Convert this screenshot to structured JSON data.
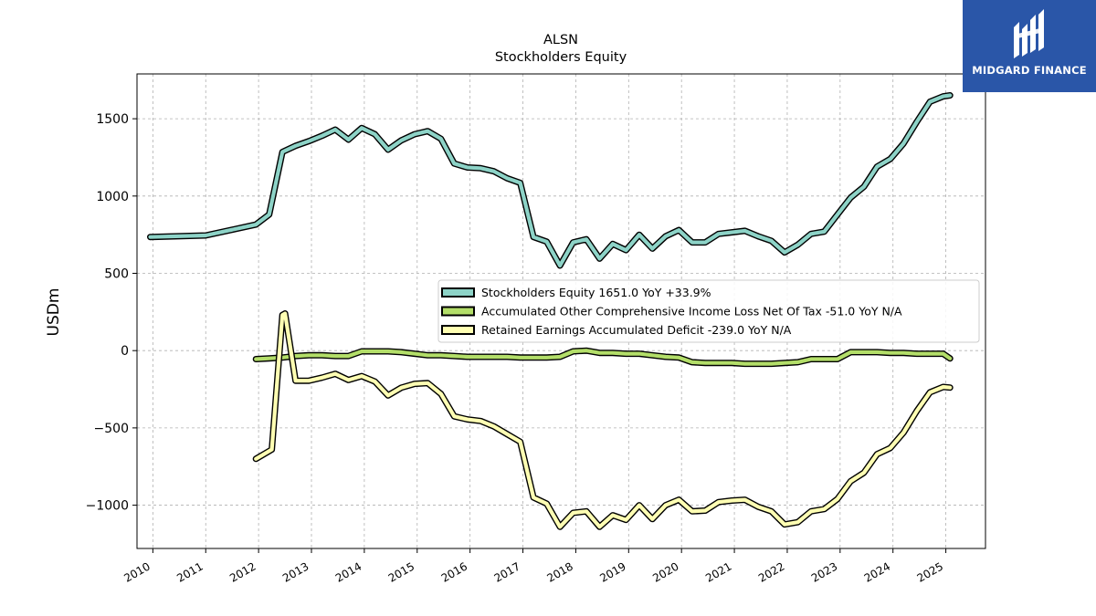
{
  "branding": {
    "logo_text": "MIDGARD FINANCE",
    "logo_bg_color": "#2a56a8"
  },
  "chart_data": {
    "type": "line",
    "title": "ALSN",
    "subtitle": "Stockholders  Equity",
    "xlabel": "",
    "ylabel": "USDm",
    "xlim": [
      2009.7,
      2025.75
    ],
    "ylim": [
      -1280,
      1790
    ],
    "x_ticks": [
      "2010",
      "2011",
      "2012",
      "2013",
      "2014",
      "2015",
      "2016",
      "2017",
      "2018",
      "2019",
      "2020",
      "2021",
      "2022",
      "2023",
      "2024",
      "2025"
    ],
    "y_ticks": [
      1500,
      1000,
      500,
      0,
      -500,
      -1000
    ],
    "y_tick_labels": [
      "1500",
      "1000",
      "500",
      "0",
      "−500",
      "−1000"
    ],
    "grid": true,
    "legend_position": "center-right",
    "series": [
      {
        "name": "Stockholders Equity  1651.0 YoY +33.9%",
        "color": "#8dd3c7",
        "x": [
          2009.95,
          2011.0,
          2011.95,
          2012.2,
          2012.45,
          2012.7,
          2012.95,
          2013.2,
          2013.45,
          2013.7,
          2013.95,
          2014.2,
          2014.45,
          2014.7,
          2014.95,
          2015.2,
          2015.45,
          2015.7,
          2015.95,
          2016.2,
          2016.45,
          2016.7,
          2016.95,
          2017.2,
          2017.45,
          2017.7,
          2017.95,
          2018.2,
          2018.45,
          2018.7,
          2018.95,
          2019.2,
          2019.45,
          2019.7,
          2019.95,
          2020.2,
          2020.45,
          2020.7,
          2020.95,
          2021.2,
          2021.45,
          2021.7,
          2021.95,
          2022.2,
          2022.45,
          2022.7,
          2022.95,
          2023.2,
          2023.45,
          2023.7,
          2023.95,
          2024.2,
          2024.45,
          2024.7,
          2024.95,
          2025.08
        ],
        "values": [
          735,
          745,
          815,
          880,
          1285,
          1325,
          1355,
          1390,
          1430,
          1365,
          1440,
          1400,
          1300,
          1360,
          1400,
          1420,
          1370,
          1210,
          1185,
          1180,
          1160,
          1115,
          1085,
          735,
          705,
          550,
          700,
          720,
          595,
          690,
          650,
          750,
          660,
          740,
          780,
          700,
          700,
          755,
          765,
          775,
          740,
          710,
          635,
          685,
          755,
          770,
          880,
          990,
          1060,
          1190,
          1240,
          1340,
          1480,
          1610,
          1645,
          1651
        ]
      },
      {
        "name": "Accumulated Other Comprehensive Income Loss Net Of Tax  -51.0 YoY N/A",
        "color": "#b3de69",
        "x": [
          2011.95,
          2012.2,
          2012.45,
          2012.7,
          2012.95,
          2013.2,
          2013.45,
          2013.7,
          2013.95,
          2014.2,
          2014.45,
          2014.7,
          2014.95,
          2015.2,
          2015.45,
          2015.7,
          2015.95,
          2016.2,
          2016.45,
          2016.7,
          2016.95,
          2017.2,
          2017.45,
          2017.7,
          2017.95,
          2018.2,
          2018.45,
          2018.7,
          2018.95,
          2019.2,
          2019.45,
          2019.7,
          2019.95,
          2020.2,
          2020.45,
          2020.7,
          2020.95,
          2021.2,
          2021.45,
          2021.7,
          2021.95,
          2022.2,
          2022.45,
          2022.7,
          2022.95,
          2023.2,
          2023.45,
          2023.7,
          2023.95,
          2024.2,
          2024.45,
          2024.7,
          2024.95,
          2025.08
        ],
        "values": [
          -55,
          -50,
          -45,
          -35,
          -30,
          -30,
          -35,
          -35,
          -5,
          -5,
          -5,
          -10,
          -20,
          -30,
          -30,
          -35,
          -40,
          -40,
          -40,
          -40,
          -45,
          -45,
          -45,
          -40,
          -5,
          0,
          -15,
          -15,
          -20,
          -20,
          -30,
          -40,
          -45,
          -75,
          -80,
          -80,
          -80,
          -85,
          -85,
          -85,
          -80,
          -75,
          -55,
          -55,
          -55,
          -10,
          -10,
          -10,
          -15,
          -15,
          -20,
          -20,
          -20,
          -51
        ]
      },
      {
        "name": "Retained Earnings Accumulated Deficit  -239.0 YoY N/A",
        "color": "#ffffb3",
        "x": [
          2011.95,
          2012.25,
          2012.45,
          2012.5,
          2012.7,
          2012.95,
          2013.2,
          2013.45,
          2013.7,
          2013.95,
          2014.2,
          2014.45,
          2014.7,
          2014.95,
          2015.2,
          2015.45,
          2015.7,
          2015.95,
          2016.2,
          2016.45,
          2016.7,
          2016.95,
          2017.2,
          2017.45,
          2017.7,
          2017.95,
          2018.2,
          2018.45,
          2018.7,
          2018.95,
          2019.2,
          2019.45,
          2019.7,
          2019.95,
          2020.2,
          2020.45,
          2020.7,
          2020.95,
          2021.2,
          2021.45,
          2021.7,
          2021.95,
          2022.2,
          2022.45,
          2022.7,
          2022.95,
          2023.2,
          2023.45,
          2023.7,
          2023.95,
          2024.2,
          2024.45,
          2024.7,
          2024.95,
          2025.08
        ],
        "values": [
          -700,
          -640,
          230,
          240,
          -195,
          -195,
          -175,
          -150,
          -190,
          -165,
          -200,
          -290,
          -240,
          -215,
          -210,
          -280,
          -425,
          -445,
          -455,
          -490,
          -540,
          -590,
          -950,
          -990,
          -1140,
          -1050,
          -1040,
          -1140,
          -1065,
          -1095,
          -1000,
          -1090,
          -1000,
          -965,
          -1040,
          -1035,
          -980,
          -970,
          -965,
          -1010,
          -1040,
          -1125,
          -1110,
          -1040,
          -1025,
          -960,
          -845,
          -790,
          -670,
          -630,
          -530,
          -390,
          -270,
          -235,
          -239
        ]
      }
    ]
  }
}
